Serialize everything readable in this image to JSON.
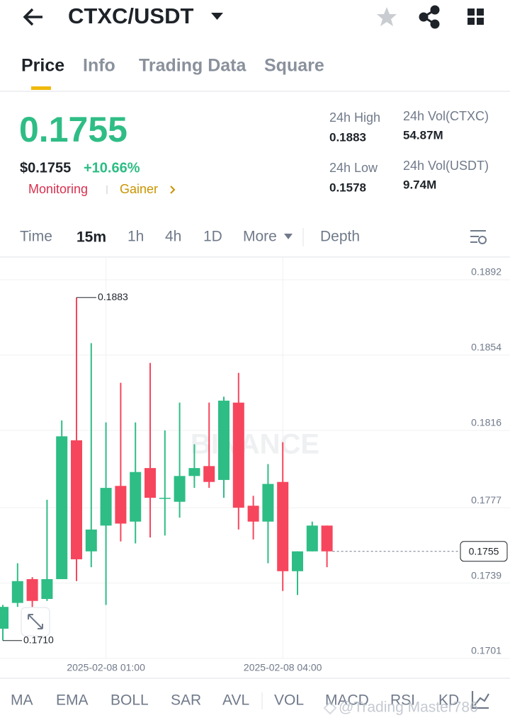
{
  "header": {
    "title": "CTXC/USDT"
  },
  "tabs": [
    "Price",
    "Info",
    "Trading Data",
    "Square"
  ],
  "price": {
    "last": "0.1755",
    "usd": "$0.1755",
    "change": "+10.66%",
    "tag_monitoring": "Monitoring",
    "tag_gainer": "Gainer"
  },
  "stats": [
    {
      "label": "24h High",
      "value": "0.1883"
    },
    {
      "label": "24h Vol(CTXC)",
      "value": "54.87M"
    },
    {
      "label": "24h Low",
      "value": "0.1578"
    },
    {
      "label": "24h Vol(USDT)",
      "value": "9.74M"
    }
  ],
  "intervals": [
    "Time",
    "15m",
    "1h",
    "4h",
    "1D",
    "More",
    "Depth"
  ],
  "indicators": [
    "MA",
    "EMA",
    "BOLL",
    "SAR",
    "AVL",
    "VOL",
    "MACD",
    "RSI",
    "KD"
  ],
  "watermark": "@Trading Master786",
  "chart_data": {
    "type": "candlestick",
    "watermark": "BINANCE",
    "categories": [
      null,
      null,
      null,
      null,
      null,
      null,
      null,
      "2025-02-08 01:00",
      null,
      null,
      null,
      null,
      null,
      null,
      null,
      null,
      null,
      null,
      null,
      "2025-02-08 04:00",
      null,
      null,
      null
    ],
    "open": [
      0.1716,
      0.1729,
      0.1741,
      0.1731,
      0.1741,
      0.1811,
      0.1755,
      0.1768,
      0.1788,
      0.177,
      0.1797,
      0.1782,
      0.178,
      0.1793,
      0.1798,
      0.1791,
      0.183,
      0.1778,
      0.177,
      0.179,
      0.1745,
      0.1755,
      0.1768
    ],
    "high": [
      0.1728,
      0.1749,
      0.1742,
      0.1781,
      0.1821,
      0.1883,
      0.186,
      0.182,
      0.184,
      0.182,
      0.185,
      0.1816,
      0.183,
      0.1809,
      0.183,
      0.1833,
      0.1845,
      0.1783,
      0.1799,
      0.181,
      0.1755,
      0.177,
      0.1768
    ],
    "low": [
      0.171,
      0.1727,
      0.1722,
      0.173,
      0.1741,
      0.174,
      0.1747,
      0.1728,
      0.176,
      0.1759,
      0.1762,
      0.1763,
      0.1772,
      0.1787,
      0.1787,
      0.1782,
      0.1766,
      0.1761,
      0.1749,
      0.1735,
      0.1733,
      0.1755,
      0.1747
    ],
    "close": [
      0.1727,
      0.174,
      0.173,
      0.1741,
      0.1813,
      0.1751,
      0.1766,
      0.1787,
      0.1769,
      0.1795,
      0.1782,
      0.1782,
      0.1793,
      0.1797,
      0.179,
      0.1831,
      0.1777,
      0.177,
      0.1789,
      0.1745,
      0.1755,
      0.1768,
      0.1755
    ],
    "up_color": "#2ebd85",
    "down_color": "#f6465d",
    "ylim": [
      0.1701,
      0.1892
    ],
    "yticks": [
      0.1892,
      0.1854,
      0.1816,
      0.1777,
      0.1739,
      0.1701
    ],
    "grid": true,
    "annotations": {
      "high": 0.1883,
      "low": {
        "value": 0.171,
        "label": "0.1710"
      },
      "last": 0.1755
    }
  }
}
